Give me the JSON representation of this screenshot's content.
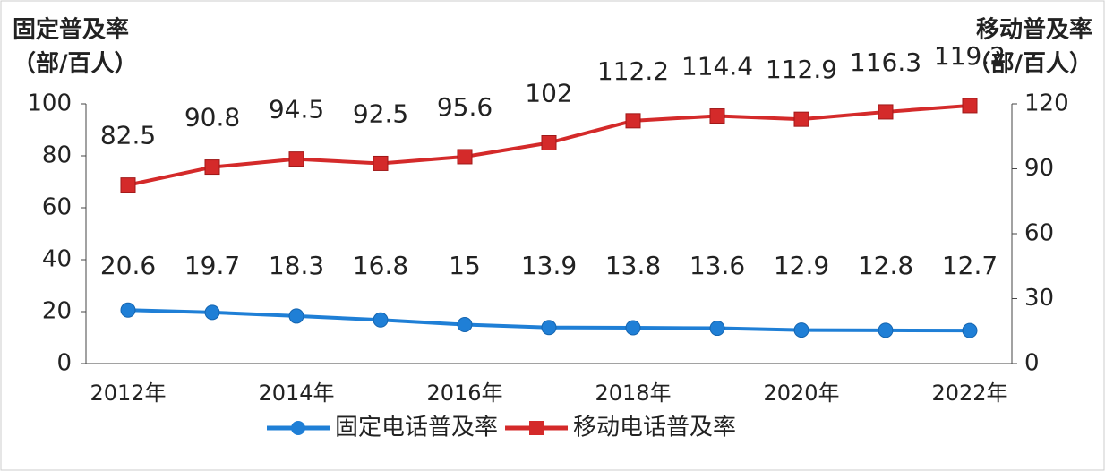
{
  "chart_data": {
    "type": "line",
    "ylabel": [
      "固定普及率",
      "（部/百人）"
    ],
    "y2label": [
      "移动普及率",
      "（部/百人）"
    ],
    "categories": [
      "2012年",
      null,
      "2014年",
      null,
      "2016年",
      null,
      "2018年",
      null,
      "2020年",
      null,
      "2022年"
    ],
    "series": [
      {
        "name": "固定电话普及率",
        "color": "#1f7fd6",
        "marker": "circle",
        "axis": "y",
        "values": [
          20.6,
          19.7,
          18.3,
          16.8,
          15,
          13.9,
          13.8,
          13.6,
          12.9,
          12.8,
          12.7
        ]
      },
      {
        "name": "移动电话普及率",
        "color": "#d42a2a",
        "marker": "square",
        "axis": "y2",
        "values": [
          82.5,
          90.8,
          94.5,
          92.5,
          95.6,
          102,
          112.2,
          114.4,
          112.9,
          116.3,
          119.2
        ]
      }
    ],
    "ylim": [
      0,
      100
    ],
    "yticks": [
      0,
      20,
      40,
      60,
      80,
      100
    ],
    "y2lim": [
      0,
      120
    ],
    "y2ticks": [
      0,
      30,
      60,
      90,
      120
    ],
    "grid": false,
    "legend": "bottom"
  }
}
